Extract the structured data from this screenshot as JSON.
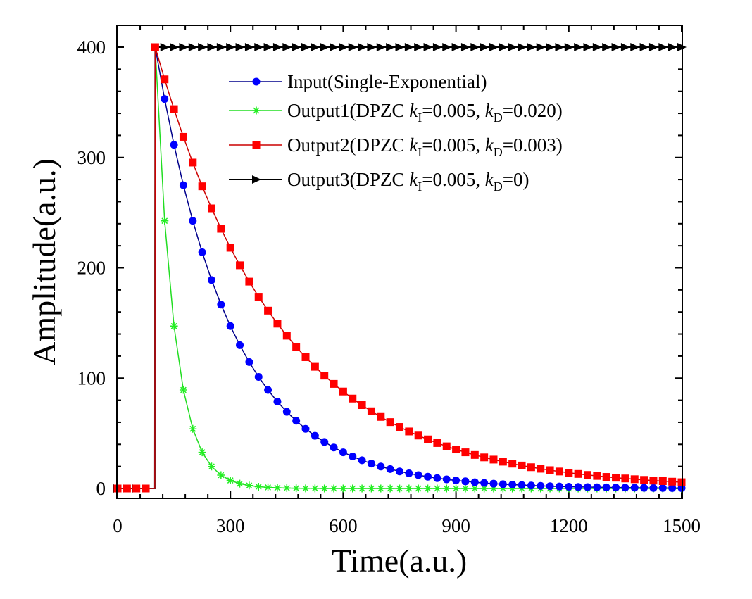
{
  "chart_data": {
    "type": "line",
    "title": "",
    "xlabel": "Time(a.u.)",
    "ylabel": "Amplitude(a.u.)",
    "xlim": [
      0,
      1500
    ],
    "ylim": [
      -9,
      420
    ],
    "xticks": [
      "0",
      "300",
      "600",
      "900",
      "1200",
      "1500"
    ],
    "yticks": [
      "0",
      "100",
      "200",
      "300",
      "400"
    ],
    "grid": false,
    "legend_position": "top-center",
    "x": [
      0,
      25,
      50,
      75,
      99,
      100,
      125,
      150,
      175,
      200,
      225,
      250,
      275,
      300,
      325,
      350,
      375,
      400,
      425,
      450,
      475,
      500,
      525,
      550,
      575,
      600,
      625,
      650,
      675,
      700,
      725,
      750,
      775,
      800,
      825,
      850,
      875,
      900,
      925,
      950,
      975,
      1000,
      1025,
      1050,
      1075,
      1100,
      1125,
      1150,
      1175,
      1200,
      1225,
      1250,
      1275,
      1300,
      1325,
      1350,
      1375,
      1400,
      1425,
      1450,
      1475,
      1500
    ],
    "series": [
      {
        "name": "Input(Single-Exponential)",
        "legend": {
          "pre": "Input(Single-Exponential)",
          "k1": "",
          "s1": "",
          "mid": "",
          "k2": "",
          "s2": "",
          "post": ""
        },
        "color": "#0000ff",
        "line_color": "#00008b",
        "marker": "circle",
        "values": [
          0,
          0,
          0,
          0,
          0,
          400,
          353.0,
          311.5,
          274.9,
          242.6,
          214.1,
          188.9,
          166.7,
          147.2,
          129.9,
          114.6,
          101.1,
          89.3,
          78.8,
          69.5,
          61.4,
          54.1,
          47.8,
          42.2,
          37.2,
          32.8,
          29.0,
          25.6,
          22.6,
          19.9,
          17.6,
          15.5,
          13.7,
          12.1,
          10.7,
          9.4,
          8.3,
          7.3,
          6.5,
          5.7,
          5.0,
          4.4,
          3.9,
          3.5,
          3.1,
          2.7,
          2.4,
          2.1,
          1.8,
          1.6,
          1.4,
          1.3,
          1.1,
          1.0,
          0.9,
          0.8,
          0.7,
          0.6,
          0.5,
          0.5,
          0.4,
          0.4
        ]
      },
      {
        "name": "Output1(DPZC kI=0.005, kD=0.020)",
        "legend": {
          "pre": "Output1(DPZC ",
          "k1": "k",
          "s1": "I",
          "mid": "=0.005, ",
          "k2": "k",
          "s2": "D",
          "post": "=0.020)"
        },
        "color": "#22ee22",
        "line_color": "#22dd22",
        "marker": "star",
        "values": [
          0,
          0,
          0,
          0,
          0,
          400,
          242.6,
          147.2,
          89.3,
          54.1,
          32.8,
          19.9,
          12.1,
          7.3,
          4.4,
          2.7,
          1.6,
          1.0,
          0.6,
          0.4,
          0.2,
          0.1,
          0.1,
          0,
          0,
          0,
          0,
          0,
          0,
          0,
          0,
          0,
          0,
          0,
          0,
          0,
          0,
          0,
          0,
          0,
          0,
          0,
          0,
          0,
          0,
          0,
          0,
          0,
          0,
          0,
          0,
          0,
          0,
          0,
          0,
          0,
          0,
          0,
          0,
          0,
          0,
          0
        ]
      },
      {
        "name": "Output2(DPZC kI=0.005, kD=0.003)",
        "legend": {
          "pre": "Output2(DPZC ",
          "k1": "k",
          "s1": "I",
          "mid": "=0.005, ",
          "k2": "k",
          "s2": "D",
          "post": "=0.003)"
        },
        "color": "#ff0000",
        "line_color": "#cc0000",
        "marker": "square",
        "values": [
          0,
          0,
          0,
          0,
          0,
          400,
          370.8,
          343.8,
          318.7,
          295.4,
          273.9,
          253.9,
          235.4,
          218.2,
          202.3,
          187.5,
          173.8,
          161.2,
          149.4,
          138.5,
          128.4,
          119.0,
          110.3,
          102.3,
          94.8,
          87.9,
          81.5,
          75.6,
          70.0,
          64.9,
          60.2,
          55.8,
          51.7,
          48.0,
          44.5,
          41.2,
          38.2,
          35.4,
          32.8,
          30.4,
          28.2,
          26.2,
          24.3,
          22.5,
          20.8,
          19.3,
          17.9,
          16.6,
          15.4,
          14.3,
          13.2,
          12.3,
          11.4,
          10.5,
          9.8,
          9.1,
          8.4,
          7.8,
          7.2,
          6.7,
          6.2,
          5.7
        ]
      },
      {
        "name": "Output3(DPZC kI=0.005, kD=0)",
        "legend": {
          "pre": "Output3(DPZC ",
          "k1": "k",
          "s1": "I",
          "mid": "=0.005, ",
          "k2": "k",
          "s2": "D",
          "post": "=0)"
        },
        "color": "#000000",
        "line_color": "#000000",
        "marker": "triangle-right",
        "values": [
          0,
          0,
          0,
          0,
          0,
          400,
          400,
          400,
          400,
          400,
          400,
          400,
          400,
          400,
          400,
          400,
          400,
          400,
          400,
          400,
          400,
          400,
          400,
          400,
          400,
          400,
          400,
          400,
          400,
          400,
          400,
          400,
          400,
          400,
          400,
          400,
          400,
          400,
          400,
          400,
          400,
          400,
          400,
          400,
          400,
          400,
          400,
          400,
          400,
          400,
          400,
          400,
          400,
          400,
          400,
          400,
          400,
          400,
          400,
          400,
          400,
          400
        ]
      }
    ]
  }
}
